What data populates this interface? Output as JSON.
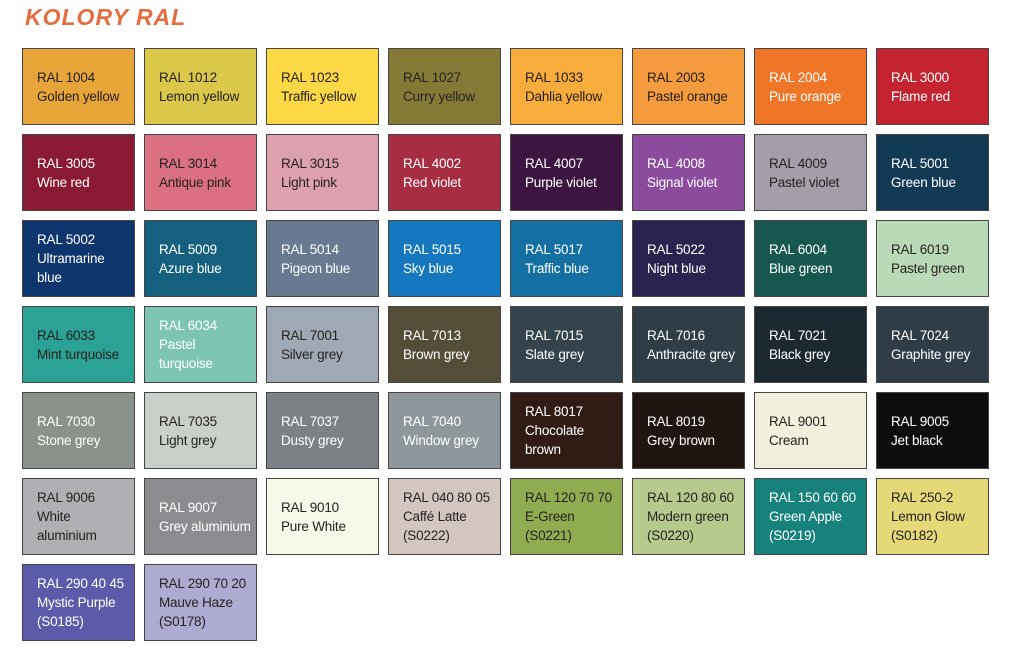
{
  "title": "KOLORY RAL",
  "colors": {
    "title_text": "#E46E40",
    "dark_label": "#262220",
    "light_label": "#FFFFFF",
    "swatch_border": "#474645",
    "page_background": "#FFFFFF"
  },
  "swatches": [
    {
      "code": "RAL 1004",
      "name": "Golden yellow",
      "bg": "#E7A438",
      "text": "dark"
    },
    {
      "code": "RAL 1012",
      "name": "Lemon yellow",
      "bg": "#DBC84B",
      "text": "dark"
    },
    {
      "code": "RAL 1023",
      "name": "Traffic yellow",
      "bg": "#FBD844",
      "text": "dark"
    },
    {
      "code": "RAL 1027",
      "name": "Curry yellow",
      "bg": "#857A35",
      "text": "dark"
    },
    {
      "code": "RAL 1033",
      "name": "Dahlia yellow",
      "bg": "#F8AC3C",
      "text": "dark"
    },
    {
      "code": "RAL 2003",
      "name": "Pastel orange",
      "bg": "#F49B3D",
      "text": "dark"
    },
    {
      "code": "RAL 2004",
      "name": "Pure orange",
      "bg": "#F07627",
      "text": "light"
    },
    {
      "code": "RAL 3000",
      "name": "Flame red",
      "bg": "#C42430",
      "text": "light"
    },
    {
      "code": "RAL 3005",
      "name": "Wine red",
      "bg": "#8A1A33",
      "text": "light"
    },
    {
      "code": "RAL 3014",
      "name": "Antique pink",
      "bg": "#DB7082",
      "text": "dark"
    },
    {
      "code": "RAL 3015",
      "name": "Light pink",
      "bg": "#DDA0AF",
      "text": "dark"
    },
    {
      "code": "RAL 4002",
      "name": "Red violet",
      "bg": "#A72D43",
      "text": "light"
    },
    {
      "code": "RAL 4007",
      "name": "Purple violet",
      "bg": "#3C1640",
      "text": "light"
    },
    {
      "code": "RAL 4008",
      "name": "Signal violet",
      "bg": "#8C4C9E",
      "text": "light"
    },
    {
      "code": "RAL 4009",
      "name": "Pastel violet",
      "bg": "#A59DA9",
      "text": "dark"
    },
    {
      "code": "RAL 5001",
      "name": "Green blue",
      "bg": "#123A55",
      "text": "light"
    },
    {
      "code": "RAL 5002",
      "name": "Ultramarine\nblue",
      "bg": "#0E356E",
      "text": "light"
    },
    {
      "code": "RAL 5009",
      "name": "Azure blue",
      "bg": "#15607E",
      "text": "light"
    },
    {
      "code": "RAL 5014",
      "name": "Pigeon blue",
      "bg": "#677A91",
      "text": "light"
    },
    {
      "code": "RAL 5015",
      "name": "Sky blue",
      "bg": "#1578BF",
      "text": "light"
    },
    {
      "code": "RAL 5017",
      "name": "Traffic blue",
      "bg": "#1470A3",
      "text": "light"
    },
    {
      "code": "RAL 5022",
      "name": "Night blue",
      "bg": "#2B234F",
      "text": "light"
    },
    {
      "code": "RAL 6004",
      "name": "Blue green",
      "bg": "#16584F",
      "text": "light"
    },
    {
      "code": "RAL 6019",
      "name": "Pastel green",
      "bg": "#B9DAB6",
      "text": "dark"
    },
    {
      "code": "RAL 6033",
      "name": "Mint turquoise",
      "bg": "#2BA295",
      "text": "dark"
    },
    {
      "code": "RAL 6034",
      "name": "Pastel turquoise",
      "bg": "#7DC5B2",
      "text": "light"
    },
    {
      "code": "RAL 7001",
      "name": "Silver grey",
      "bg": "#9FA9B5",
      "text": "dark"
    },
    {
      "code": "RAL 7013",
      "name": "Brown grey",
      "bg": "#544D37",
      "text": "light"
    },
    {
      "code": "RAL 7015",
      "name": "Slate grey",
      "bg": "#35434D",
      "text": "light"
    },
    {
      "code": "RAL 7016",
      "name": "Anthracite grey",
      "bg": "#2F3D46",
      "text": "light"
    },
    {
      "code": "RAL 7021",
      "name": "Black grey",
      "bg": "#1D2931",
      "text": "light"
    },
    {
      "code": "RAL 7024",
      "name": "Graphite grey",
      "bg": "#303D48",
      "text": "light"
    },
    {
      "code": "RAL 7030",
      "name": "Stone grey",
      "bg": "#8B918B",
      "text": "light"
    },
    {
      "code": "RAL 7035",
      "name": "Light grey",
      "bg": "#C9CFC9",
      "text": "dark"
    },
    {
      "code": "RAL 7037",
      "name": "Dusty grey",
      "bg": "#7C8185",
      "text": "light"
    },
    {
      "code": "RAL 7040",
      "name": "Window grey",
      "bg": "#8D979C",
      "text": "light"
    },
    {
      "code": "RAL 8017",
      "name": "Chocolate\nbrown",
      "bg": "#301C14",
      "text": "light"
    },
    {
      "code": "RAL 8019",
      "name": "Grey brown",
      "bg": "#201511",
      "text": "light"
    },
    {
      "code": "RAL 9001",
      "name": "Cream",
      "bg": "#F2F0DD",
      "text": "dark"
    },
    {
      "code": "RAL 9005",
      "name": "Jet black",
      "bg": "#0C0E10",
      "text": "light"
    },
    {
      "code": "RAL 9006",
      "name": "White\naluminium",
      "bg": "#AFB0B4",
      "text": "dark"
    },
    {
      "code": "RAL 9007",
      "name": "Grey aluminium",
      "bg": "#8B8C90",
      "text": "light"
    },
    {
      "code": "RAL 9010",
      "name": "Pure White",
      "bg": "#F7F7EA",
      "text": "dark"
    },
    {
      "code": "RAL 040 80 05",
      "name": "Caffé Latte",
      "sub": "(S0222)",
      "bg": "#D3C6C0",
      "text": "dark"
    },
    {
      "code": "RAL 120 70 70",
      "name": "E-Green",
      "sub": "(S0221)",
      "bg": "#90AC50",
      "text": "dark"
    },
    {
      "code": "RAL 120 80 60",
      "name": "Modern green",
      "sub": "(S0220)",
      "bg": "#B6CA8D",
      "text": "dark"
    },
    {
      "code": "RAL 150 60 60",
      "name": "Green Apple",
      "sub": "(S0219)",
      "bg": "#17817B",
      "text": "light"
    },
    {
      "code": "RAL 250-2",
      "name": "Lemon Glow",
      "sub": "(S0182)",
      "bg": "#E5D878",
      "text": "dark"
    },
    {
      "code": "RAL 290 40 45",
      "name": "Mystic Purple",
      "sub": "(S0185)",
      "bg": "#5C5BAA",
      "text": "light"
    },
    {
      "code": "RAL 290 70 20",
      "name": "Mauve Haze",
      "sub": "(S0178)",
      "bg": "#AEABD2",
      "text": "dark"
    }
  ]
}
